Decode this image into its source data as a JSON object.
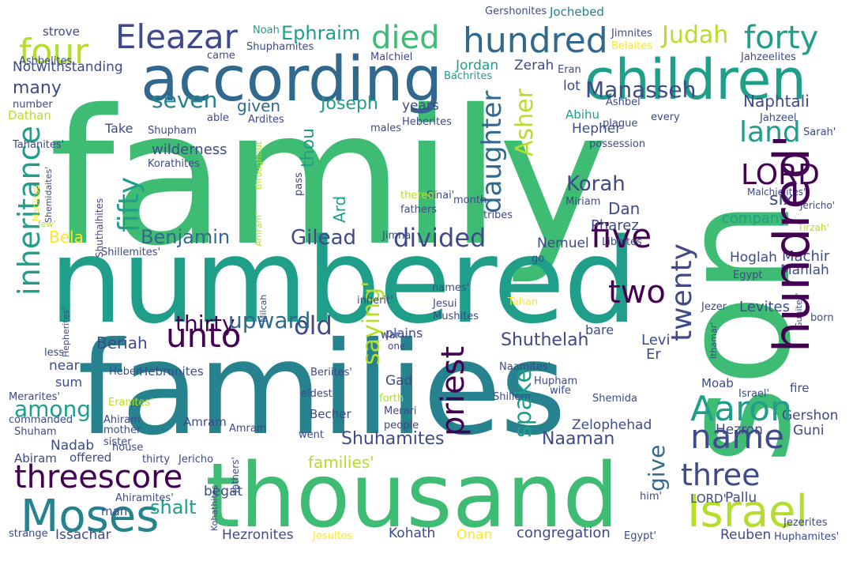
{
  "colors": {
    "background": "#ffffff",
    "palette": {
      "green": "#3fbc73",
      "teal": "#1f9e89",
      "bluegreen": "#26828e",
      "navy": "#31688e",
      "slate": "#3e4a89",
      "purple": "#440154",
      "yellowgreen": "#b5de2b",
      "lime": "#8fd744",
      "yellow": "#fde725"
    }
  },
  "words": {
    "family": "family",
    "son": "son",
    "numbered": "numbered",
    "families": "families",
    "thousand": "thousand",
    "according": "according",
    "children": "children",
    "hundred_top": "hundred",
    "hundred_rot": "hundred'",
    "eleazar": "Eleazar",
    "four": "four",
    "died": "died",
    "forty": "forty",
    "judah": "Judah",
    "ephraim": "Ephraim",
    "strove": "strove",
    "noah": "Noah",
    "shuphamites": "Shuphamites",
    "gershonites": "Gershonites",
    "jochebed": "Jochebed",
    "jimnites": "Jimnites",
    "belaites": "Belaites",
    "ashbelites": "Ashbelites",
    "came": "came",
    "malchiel": "Malchiel",
    "bachrites": "Bachrites",
    "jahzeelites": "Jahzeelites",
    "eran": "Eran",
    "notwithstanding": "Notwithstanding",
    "jordan": "Jordan",
    "zerah": "Zerah",
    "lot": "lot",
    "many": "many",
    "number": "number",
    "seven": "seven",
    "manasseh": "Manasseh",
    "land": "land",
    "lord": "LORD",
    "inheritance": "inheritance",
    "dathan": "Dathan",
    "take": "Take",
    "shupham": "Shupham",
    "ardites": "Ardites",
    "given": "given",
    "joseph": "Joseph",
    "years": "years",
    "heberites": "Heberites",
    "naphtali": "Naphtali",
    "jahzeel": "Jahzeel",
    "able": "able",
    "males": "males",
    "ashbel": "Ashbel",
    "every": "every",
    "plague": "plague",
    "tahanites": "Tahanites'",
    "unto": "unto",
    "fifty": "fifty",
    "abihu": "Abihu",
    "hepher": "Hepher",
    "wilderness": "wilderness",
    "korathites": "Korathites",
    "thou": "thou",
    "daughter": "daughter",
    "asher": "Asher",
    "korah": "Korah",
    "possession": "possession",
    "sarah": "Sarah'",
    "six": "six",
    "aaron": "Aaron",
    "dan": "Dan",
    "pass": "pass",
    "throughout": "throughout",
    "amram_rot": "Amram'",
    "shemidaites": "Shemidaites'",
    "mahlites": "Mahlites",
    "malchielites": "Malchielites'",
    "jericho_rot": "Jericho'",
    "tirzah": "Tirzah'",
    "five": "five",
    "month": "month",
    "miriam": "Miriam",
    "company": "company",
    "twenty": "twenty",
    "sinai": "Sinai'",
    "tribes": "tribes",
    "thereof": "thereof",
    "fathers": "fathers",
    "shuthalhites": "Shuthalhites",
    "few": "few'",
    "ard": "Ard",
    "bela": "Bela",
    "benjamin": "Benjamin",
    "gilead": "Gilead",
    "divided": "divided",
    "jimna": "Jimna",
    "pharez": "Pharez",
    "machir": "Machir",
    "libnites": "Libnites",
    "go": "go",
    "nemuel": "Nemuel",
    "hoglah": "Hoglah",
    "mahlah": "Mahlah",
    "egypt": "Egypt",
    "shillemites": "Shillemites'",
    "two": "two",
    "name": "name",
    "threescore": "threescore",
    "moses": "Moses",
    "israel": "Israel",
    "three": "three",
    "old": "old",
    "among": "among",
    "beriah": "Beriah",
    "shuthelah": "Shuthelah",
    "priest": "priest",
    "saying": "saying'",
    "spake": "spake",
    "thirty_big": "thirty",
    "upward": "upward",
    "names": "names'",
    "inherit": "inherit'",
    "jesui": "Jesui",
    "mushites": "Mushites",
    "tahan": "Tahan",
    "levites": "Levites",
    "jezer": "Jezer",
    "gunites": "Gunites'",
    "ithamar": "Ithamar'",
    "born": "born",
    "hepherites": "Hepherites'",
    "milcah": "Milcah",
    "war": "war",
    "levi": "Levi",
    "er": "Er",
    "less": "less",
    "near": "near",
    "sum": "sum",
    "one": "one",
    "plains": "plains",
    "bare": "bare",
    "naamites": "Naamites'",
    "hupham": "Hupham",
    "wife": "wife",
    "shillem": "Shillem",
    "shemida": "Shemida",
    "heber": "Heber",
    "hebronites": "Hebronites",
    "beriites": "Beriites'",
    "gad": "Gad",
    "eldest": "eldest",
    "israel_small": "Israel'",
    "moab": "Moab",
    "fire": "fire",
    "merarites": "Merarites'",
    "eranites": "Eranites'",
    "forth": "forth",
    "families_q": "families'",
    "commanded": "commanded",
    "ahiram": "Ahiram",
    "amram": "Amram",
    "becher": "Becher",
    "merari": "Merari",
    "people": "people",
    "zelophehad": "Zelophehad",
    "hezron": "Hezron",
    "guni": "Guni",
    "shuham": "Shuham",
    "mother": "mother",
    "sister": "sister",
    "went": "went",
    "shuhamites": "Shuhamites",
    "naaman": "Naaman",
    "gershon": "Gershon",
    "nadab": "Nadab",
    "house": "house",
    "abiram": "Abiram",
    "offered": "offered",
    "thirty_small": "thirty",
    "jericho": "Jericho",
    "fathers_q": "fathers'",
    "him": "him'",
    "lord_q": "LORD'",
    "pallu": "Pallu",
    "shalt": "shalt",
    "give": "give",
    "man": "man",
    "ahiramites": "Ahiramites'",
    "begat": "begat",
    "kohathites": "Kohathites",
    "jezerites": "Jezerites",
    "strange": "strange",
    "issachar": "Issachar",
    "hezronites": "Hezronites",
    "jesuites": "Jesuites",
    "kohath": "Kohath",
    "onan": "Onan",
    "congregation": "congregation",
    "egypt_q": "Egypt'",
    "reuben": "Reuben",
    "huphamites": "Huphamites'"
  }
}
